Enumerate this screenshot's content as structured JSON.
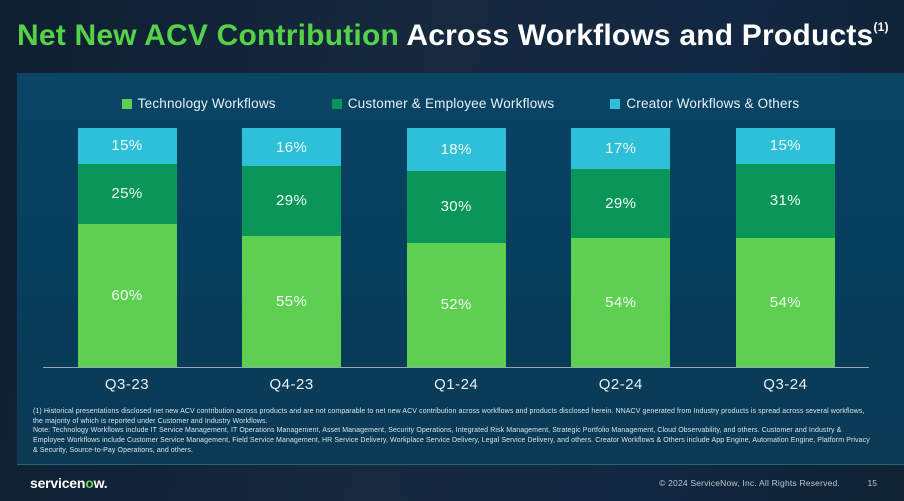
{
  "slide": {
    "title": {
      "green": "Net New ACV Contribution",
      "white": " Across Workflows and Products",
      "superscript": "(1)"
    },
    "footnotes": [
      "(1) Historical presentations disclosed net new ACV contribution across products and are not comparable to net new ACV contribution across workflows and products disclosed herein. NNACV generated from Industry products is spread across several workflows, the majority of which is reported under Customer and Industry Workflows.",
      "Note: Technology Workflows include IT Service Management, IT Operations Management, Asset Management, Security Operations, Integrated Risk Management, Strategic Portfolio Management, Cloud Observability, and others. Customer and Industry & Employee Workflows include Customer Service Management, Field Service Management, HR Service Delivery, Workplace Service Delivery, Legal Service Delivery, and others. Creator Workflows & Others include App Engine, Automation Engine, Platform Privacy & Security, Source-to-Pay Operations, and others."
    ],
    "footer": {
      "logo_pre": "servicen",
      "logo_o": "o",
      "logo_post": "w.",
      "copyright": "© 2024 ServiceNow, Inc. All Rights Reserved.",
      "page": "15"
    },
    "colors": {
      "title_green": "#55D249",
      "panel_background": "#07405E",
      "slide_background": "#13283C"
    }
  },
  "chart_data": {
    "type": "bar",
    "stacked": true,
    "title": "Net New ACV Contribution Across Workflows and Products",
    "categories": [
      "Q3-23",
      "Q4-23",
      "Q1-24",
      "Q2-24",
      "Q3-24"
    ],
    "series": [
      {
        "name": "Technology Workflows",
        "color": "#5DD052",
        "values": [
          60,
          55,
          52,
          54,
          54
        ]
      },
      {
        "name": "Customer & Employee Workflows",
        "color": "#0A9659",
        "values": [
          25,
          29,
          30,
          29,
          31
        ]
      },
      {
        "name": "Creator Workflows & Others",
        "color": "#2DC0D8",
        "values": [
          15,
          16,
          18,
          17,
          15
        ]
      }
    ],
    "value_suffix": "%",
    "xlabel": "",
    "ylabel": "",
    "ylim": [
      0,
      100
    ],
    "grid": false,
    "legend_position": "top",
    "value_labels": "inside"
  }
}
